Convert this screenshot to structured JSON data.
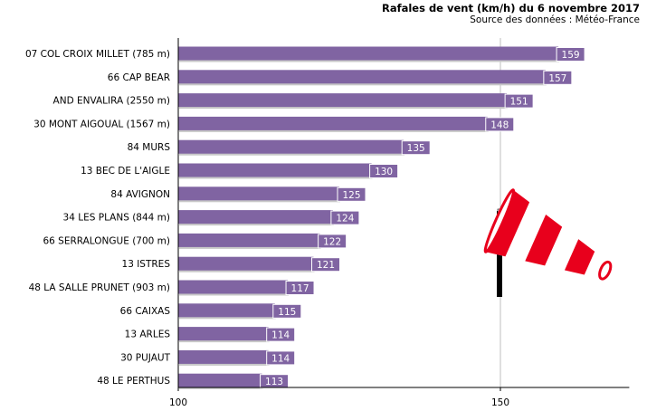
{
  "chart_data": {
    "type": "bar",
    "title": "Rafales de vent (km/h) du 6 novembre 2017",
    "subtitle": "Source des données : Météo-France",
    "categories": [
      "07 COL CROIX MILLET (785 m)",
      "66 CAP BEAR",
      "AND ENVALIRA (2550 m)",
      "30 MONT AIGOUAL (1567 m)",
      "84 MURS",
      "13 BEC DE L'AIGLE",
      "84 AVIGNON",
      "34 LES PLANS (844 m)",
      "66 SERRALONGUE (700 m)",
      "13 ISTRES",
      "48 LA SALLE PRUNET (903 m)",
      "66 CAIXAS",
      "13 ARLES",
      "30 PUJAUT",
      "48 LE PERTHUS"
    ],
    "values": [
      159,
      157,
      151,
      148,
      135,
      130,
      125,
      124,
      122,
      121,
      117,
      115,
      114,
      114,
      113
    ],
    "xlim": [
      100,
      170
    ],
    "xticks": [
      "100",
      "150"
    ],
    "orientation": "horizontal",
    "grid": "vertical line at 150",
    "bar_color": "#8064a2"
  },
  "decoration": {
    "windsock_icon": "windsock-icon"
  }
}
